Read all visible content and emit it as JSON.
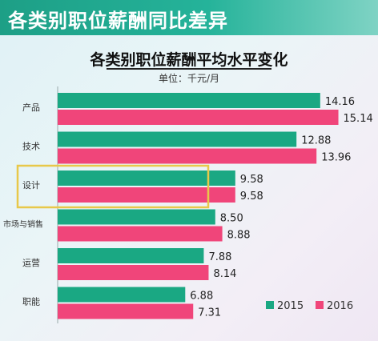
{
  "banner": {
    "title": "各类别职位薪酬同比差异"
  },
  "chart_data": {
    "type": "bar",
    "orientation": "horizontal",
    "title": "各类别职位薪酬平均水平变化",
    "unit_label": "单位：千元/月",
    "categories": [
      "产品",
      "技术",
      "设计",
      "市场与销售",
      "运营",
      "职能"
    ],
    "series": [
      {
        "name": "2015",
        "values": [
          14.16,
          12.88,
          9.58,
          8.5,
          7.88,
          6.88
        ],
        "color": "#1aa883"
      },
      {
        "name": "2016",
        "values": [
          15.14,
          13.96,
          9.58,
          8.88,
          8.14,
          7.31
        ],
        "color": "#f0457a"
      }
    ],
    "value_labels": {
      "2015": [
        "14.16",
        "12.88",
        "9.58",
        "8.50",
        "7.88",
        "6.88"
      ],
      "2016": [
        "15.14",
        "13.96",
        "9.58",
        "8.88",
        "8.14",
        "7.31"
      ]
    },
    "highlighted_category": "设计",
    "highlight_color": "#e8c84a",
    "legend_position": "bottom-right",
    "xlim": [
      0,
      16
    ]
  }
}
